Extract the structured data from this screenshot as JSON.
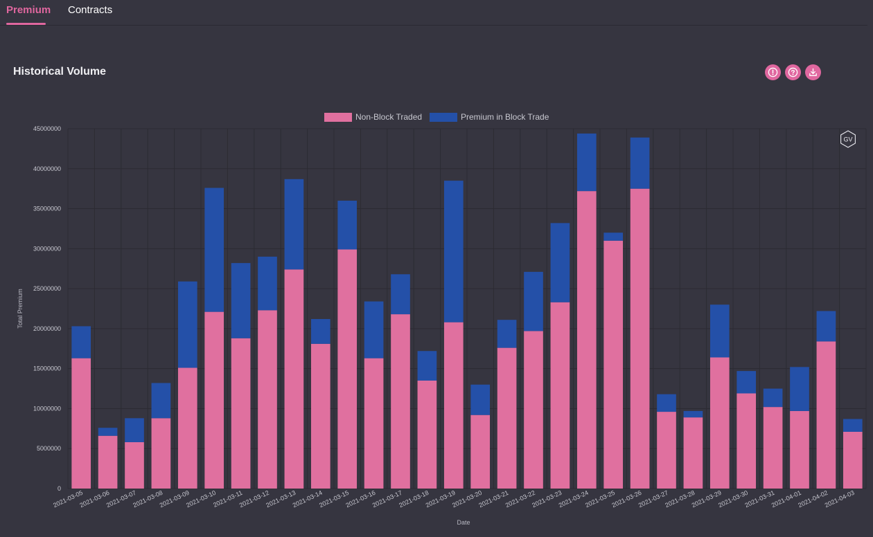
{
  "tabs": [
    {
      "label": "Premium",
      "active": true
    },
    {
      "label": "Contracts",
      "active": false
    }
  ],
  "header": {
    "title": "Historical Volume",
    "icons": [
      "info-icon",
      "help-icon",
      "download-icon"
    ]
  },
  "colors": {
    "accent": "#e0679f",
    "non_block": "#e0709f",
    "block": "#2450a8",
    "background": "#363540"
  },
  "watermark": "GV",
  "chart_data": {
    "type": "bar",
    "stacked": true,
    "xlabel": "Date",
    "ylabel": "Total Premium",
    "ylim": [
      0,
      45000000
    ],
    "yticks": [
      0,
      5000000,
      10000000,
      15000000,
      20000000,
      25000000,
      30000000,
      35000000,
      40000000,
      45000000
    ],
    "grid": true,
    "legend_position": "top-center",
    "categories": [
      "2021-03-05",
      "2021-03-06",
      "2021-03-07",
      "2021-03-08",
      "2021-03-09",
      "2021-03-10",
      "2021-03-11",
      "2021-03-12",
      "2021-03-13",
      "2021-03-14",
      "2021-03-15",
      "2021-03-16",
      "2021-03-17",
      "2021-03-18",
      "2021-03-19",
      "2021-03-20",
      "2021-03-21",
      "2021-03-22",
      "2021-03-23",
      "2021-03-24",
      "2021-03-25",
      "2021-03-26",
      "2021-03-27",
      "2021-03-28",
      "2021-03-29",
      "2021-03-30",
      "2021-03-31",
      "2021-04-01",
      "2021-04-02",
      "2021-04-03"
    ],
    "series": [
      {
        "name": "Non-Block Traded",
        "values": [
          16300000,
          6600000,
          5800000,
          8800000,
          15100000,
          22100000,
          18800000,
          22300000,
          27400000,
          18100000,
          29900000,
          16300000,
          21800000,
          13500000,
          20800000,
          9200000,
          17600000,
          19700000,
          23300000,
          37200000,
          31000000,
          37500000,
          9600000,
          8900000,
          16400000,
          11900000,
          10200000,
          9700000,
          18400000,
          7100000
        ]
      },
      {
        "name": "Premium in Block Trade",
        "values": [
          4000000,
          1000000,
          3000000,
          4400000,
          10800000,
          15500000,
          9400000,
          6700000,
          11300000,
          3100000,
          6100000,
          7100000,
          5000000,
          3700000,
          17700000,
          3800000,
          3500000,
          7400000,
          9900000,
          7200000,
          1000000,
          6400000,
          2200000,
          800000,
          6600000,
          2800000,
          2300000,
          5500000,
          3800000,
          1600000
        ]
      }
    ]
  }
}
